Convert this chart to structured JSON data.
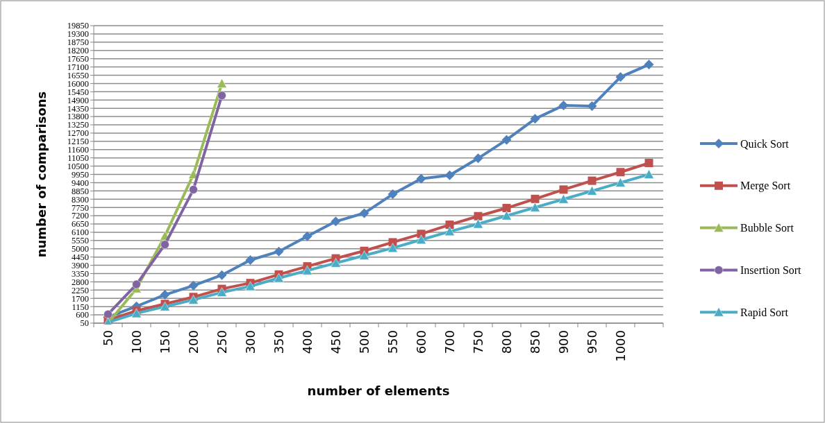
{
  "chart_data": {
    "type": "line",
    "xlabel": "number of elements",
    "ylabel": "number of comparisons",
    "categories": [
      "50",
      "100",
      "150",
      "200",
      "250",
      "300",
      "350",
      "400",
      "450",
      "500",
      "550",
      "600",
      "700",
      "750",
      "800",
      "850",
      "900",
      "950",
      "1000",
      null
    ],
    "ylim": [
      50,
      19850
    ],
    "yticks": [
      50,
      600,
      1150,
      1700,
      2250,
      2800,
      3350,
      3900,
      4450,
      5000,
      5550,
      6100,
      6650,
      7200,
      7750,
      8300,
      8850,
      9400,
      9950,
      10500,
      11050,
      11600,
      12150,
      12700,
      13250,
      13800,
      14350,
      14900,
      15450,
      16000,
      16550,
      17100,
      17650,
      18200,
      18750,
      19300,
      19850
    ],
    "grid": "y",
    "legend": "right",
    "series": [
      {
        "name": "Quick Sort",
        "color": "#4f81bd",
        "marker": "diamond",
        "values": [
          450,
          1170,
          1940,
          2550,
          3250,
          4250,
          4820,
          5830,
          6820,
          7370,
          8630,
          9660,
          9890,
          11020,
          12250,
          13650,
          14540,
          14500,
          16430,
          17260
        ]
      },
      {
        "name": "Merge Sort",
        "color": "#c0504d",
        "marker": "square",
        "values": [
          250,
          870,
          1330,
          1790,
          2330,
          2720,
          3290,
          3830,
          4360,
          4860,
          5430,
          5990,
          6600,
          7170,
          7710,
          8320,
          8940,
          9530,
          10100,
          10710
        ]
      },
      {
        "name": "Bubble Sort",
        "color": "#9bbb59",
        "marker": "triangle",
        "values": [
          50,
          2350,
          5850,
          9950,
          16000,
          null,
          null,
          null,
          null,
          null,
          null,
          null,
          null,
          null,
          null,
          null,
          null,
          null,
          null,
          null
        ]
      },
      {
        "name": "Insertion Sort",
        "color": "#8064a2",
        "marker": "circle",
        "values": [
          640,
          2630,
          5280,
          8940,
          15200,
          null,
          null,
          null,
          null,
          null,
          null,
          null,
          null,
          null,
          null,
          null,
          null,
          null,
          null,
          null
        ]
      },
      {
        "name": "Rapid Sort",
        "color": "#4bacc6",
        "marker": "triangle",
        "values": [
          100,
          700,
          1150,
          1600,
          2100,
          2500,
          3050,
          3550,
          4050,
          4550,
          5050,
          5600,
          6150,
          6650,
          7200,
          7750,
          8300,
          8850,
          9400,
          9950
        ]
      }
    ]
  }
}
